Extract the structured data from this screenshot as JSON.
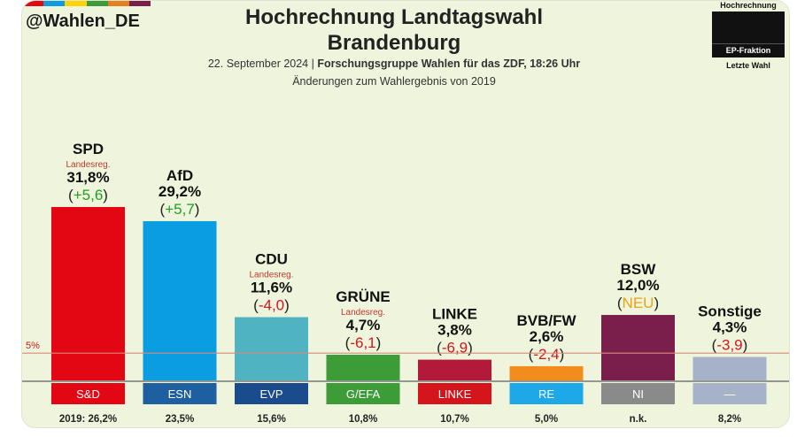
{
  "handle": "@Wahlen_DE",
  "strip_colors": [
    "#e30613",
    "#0a9ee0",
    "#ffd400",
    "#3c9c38",
    "#e87d1e",
    "#7a1f4b"
  ],
  "title_line1": "Hochrechnung Landtagswahl",
  "title_line2": "Brandenburg",
  "subtitle_date": "22. September 2024 | ",
  "subtitle_source": "Forschungsgruppe Wahlen für das ZDF, 18:26 Uhr",
  "subtitle2": "Änderungen zum Wahlergebnis von 2019",
  "legend": {
    "top": "Hochrechnung",
    "middle": "EP-Fraktion",
    "bottom": "Letzte Wahl"
  },
  "chart_data": {
    "type": "bar",
    "title": "Hochrechnung Landtagswahl Brandenburg",
    "threshold": {
      "value": 5,
      "label": "5%"
    },
    "ylim": [
      0,
      31.8
    ],
    "bars": [
      {
        "party": "SPD",
        "note": "Landesreg.",
        "value_label": "31,8%",
        "value": 31.8,
        "change": "+5,6",
        "change_color": "#1f9e1f",
        "fraction": "S&D",
        "prev": "2019: 26,2%",
        "color": "#e30613",
        "tag_color": "#e30613"
      },
      {
        "party": "AfD",
        "note": "",
        "value_label": "29,2%",
        "value": 29.2,
        "change": "+5,7",
        "change_color": "#1f9e1f",
        "fraction": "ESN",
        "prev": "23,5%",
        "color": "#0a9ee0",
        "tag_color": "#1d5fa1"
      },
      {
        "party": "CDU",
        "note": "Landesreg.",
        "value_label": "11,6%",
        "value": 11.6,
        "change": "-4,0",
        "change_color": "#d4161c",
        "fraction": "EVP",
        "prev": "15,6%",
        "color": "#4fb3c2",
        "tag_color": "#1a4b8c"
      },
      {
        "party": "GRÜNE",
        "note": "Landesreg.",
        "value_label": "4,7%",
        "value": 4.7,
        "change": "-6,1",
        "change_color": "#d4161c",
        "fraction": "G/EFA",
        "prev": "10,8%",
        "color": "#3c9c38",
        "tag_color": "#3c9c38"
      },
      {
        "party": "LINKE",
        "note": "",
        "value_label": "3,8%",
        "value": 3.8,
        "change": "-6,9",
        "change_color": "#d4161c",
        "fraction": "LINKE",
        "prev": "10,7%",
        "color": "#b3193b",
        "tag_color": "#d4161c"
      },
      {
        "party": "BVB/FW",
        "note": "",
        "value_label": "2,6%",
        "value": 2.6,
        "change": "-2,4",
        "change_color": "#d4161c",
        "fraction": "RE",
        "prev": "5,0%",
        "color": "#f28c1c",
        "tag_color": "#1ea8e8"
      },
      {
        "party": "BSW",
        "note": "",
        "value_label": "12,0%",
        "value": 12.0,
        "change": "NEU",
        "change_color": "#e8a317",
        "fraction": "NI",
        "prev": "n.k.",
        "color": "#7a1f4b",
        "tag_color": "#8a8a8a"
      },
      {
        "party": "Sonstige",
        "note": "",
        "value_label": "4,3%",
        "value": 4.3,
        "change": "-3,9",
        "change_color": "#d4161c",
        "fraction": "—",
        "prev": "8,2%",
        "color": "#a6b2c8",
        "tag_color": "#a6b2c8"
      }
    ]
  }
}
